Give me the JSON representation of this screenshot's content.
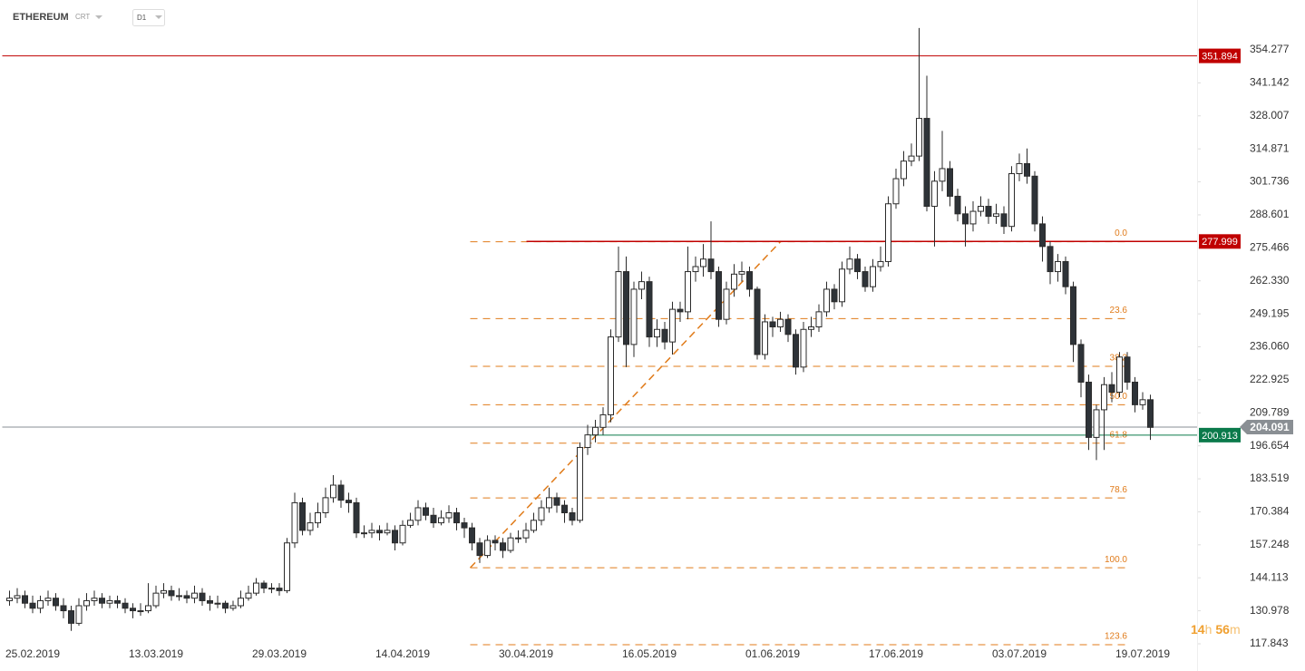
{
  "header": {
    "symbol": "ETHEREUM",
    "account": "CRT",
    "timeframe": "D1"
  },
  "countdown": [
    "14",
    "h",
    "56",
    "m"
  ],
  "chart_data": {
    "type": "candlestick",
    "categories": [
      null,
      null,
      null,
      "25.02.2019",
      null,
      null,
      null,
      null,
      null,
      null,
      null,
      null,
      null,
      null,
      null,
      null,
      null,
      null,
      null,
      "13.03.2019",
      null,
      null,
      null,
      null,
      null,
      null,
      null,
      null,
      null,
      null,
      null,
      null,
      null,
      null,
      null,
      "29.03.2019",
      null,
      null,
      null,
      null,
      null,
      null,
      null,
      null,
      null,
      null,
      null,
      null,
      null,
      null,
      null,
      "14.04.2019",
      null,
      null,
      null,
      null,
      null,
      null,
      null,
      null,
      null,
      null,
      null,
      null,
      null,
      null,
      null,
      "30.04.2019",
      null,
      null,
      null,
      null,
      null,
      null,
      null,
      null,
      null,
      null,
      null,
      null,
      null,
      null,
      null,
      "16.05.2019",
      null,
      null,
      null,
      null,
      null,
      null,
      null,
      null,
      null,
      null,
      null,
      null,
      null,
      null,
      null,
      "01.06.2019",
      null,
      null,
      null,
      null,
      null,
      null,
      null,
      null,
      null,
      null,
      null,
      null,
      null,
      null,
      null,
      "17.06.2019",
      null,
      null,
      null,
      null,
      null,
      null,
      null,
      null,
      null,
      null,
      null,
      null,
      null,
      null,
      null,
      "03.07.2019",
      null,
      null,
      null,
      null,
      null,
      null,
      null,
      null,
      null,
      null,
      null,
      null,
      null,
      null,
      null,
      "19.07.2019",
      null
    ],
    "open": [
      135,
      136,
      137,
      134,
      132,
      135,
      136,
      133,
      131,
      126,
      133,
      135,
      136,
      134,
      135,
      134,
      132,
      131,
      131,
      133,
      138,
      139,
      137,
      137,
      136,
      138,
      135,
      134,
      134,
      132,
      133,
      136,
      138,
      142,
      140,
      140,
      139,
      158,
      174,
      163,
      166,
      170,
      176,
      181,
      175,
      174,
      162,
      162,
      163,
      162,
      163,
      158,
      165,
      167,
      172,
      169,
      166,
      168,
      170,
      166,
      164,
      158,
      153,
      159,
      158,
      155,
      160,
      160,
      163,
      167,
      172,
      176,
      173,
      170,
      167,
      196,
      201,
      204,
      209,
      240,
      266,
      237,
      259,
      262,
      240,
      243,
      238,
      251,
      250,
      266,
      268,
      271,
      266,
      247,
      259,
      265,
      266,
      259,
      233,
      246,
      244,
      247,
      241,
      228,
      243,
      244,
      250,
      259,
      254,
      267,
      271,
      266,
      260,
      268,
      270,
      293,
      303,
      310,
      312,
      327,
      292,
      302,
      307,
      296,
      289,
      285,
      290,
      292,
      288,
      289,
      284,
      305,
      309,
      304,
      285,
      276,
      266,
      270,
      260,
      237,
      222,
      200,
      211,
      221,
      218,
      232,
      222,
      213,
      215
    ],
    "high": [
      139,
      140,
      139,
      137,
      137,
      139,
      138,
      136,
      133,
      136,
      138,
      139,
      138,
      137,
      137,
      136,
      134,
      134,
      142,
      141,
      142,
      141,
      140,
      139,
      141,
      140,
      137,
      137,
      135,
      135,
      139,
      141,
      144,
      143,
      142,
      142,
      160,
      178,
      176,
      170,
      174,
      180,
      185,
      183,
      178,
      176,
      165,
      166,
      165,
      166,
      165,
      167,
      170,
      175,
      174,
      172,
      171,
      173,
      172,
      168,
      166,
      160,
      161,
      161,
      160,
      162,
      163,
      166,
      170,
      175,
      180,
      178,
      175,
      172,
      198,
      205,
      207,
      212,
      243,
      276,
      272,
      262,
      266,
      264,
      247,
      246,
      254,
      254,
      276,
      272,
      277,
      286,
      268,
      262,
      269,
      270,
      268,
      260,
      249,
      248,
      250,
      249,
      243,
      246,
      248,
      253,
      262,
      261,
      270,
      276,
      273,
      268,
      271,
      276,
      296,
      307,
      314,
      317,
      363,
      344,
      306,
      322,
      310,
      299,
      292,
      294,
      296,
      295,
      293,
      292,
      308,
      313,
      315,
      306,
      288,
      278,
      273,
      272,
      262,
      239,
      225,
      213,
      224,
      226,
      234,
      234,
      224,
      218,
      217
    ],
    "low": [
      133,
      134,
      132,
      130,
      130,
      133,
      131,
      128,
      123,
      125,
      131,
      133,
      132,
      132,
      132,
      130,
      128,
      129,
      130,
      132,
      136,
      135,
      135,
      134,
      134,
      133,
      131,
      132,
      130,
      131,
      132,
      135,
      137,
      138,
      138,
      137,
      138,
      156,
      161,
      161,
      164,
      168,
      174,
      172,
      170,
      160,
      160,
      160,
      159,
      161,
      155,
      157,
      164,
      165,
      167,
      164,
      165,
      166,
      163,
      160,
      155,
      150,
      152,
      155,
      152,
      154,
      158,
      158,
      162,
      165,
      170,
      170,
      166,
      165,
      166,
      193,
      198,
      201,
      206,
      238,
      228,
      232,
      255,
      236,
      236,
      235,
      233,
      246,
      247,
      262,
      264,
      263,
      244,
      245,
      256,
      262,
      256,
      231,
      231,
      240,
      242,
      238,
      225,
      226,
      240,
      242,
      248,
      251,
      252,
      265,
      263,
      258,
      258,
      266,
      268,
      291,
      300,
      308,
      310,
      290,
      276,
      298,
      292,
      286,
      276,
      282,
      288,
      285,
      285,
      281,
      282,
      302,
      301,
      282,
      270,
      261,
      262,
      257,
      230,
      216,
      195,
      191,
      195,
      214,
      216,
      219,
      210,
      211,
      199
    ],
    "close": [
      136,
      137,
      134,
      132,
      135,
      136,
      133,
      131,
      126,
      133,
      135,
      136,
      134,
      135,
      134,
      132,
      131,
      131,
      133,
      138,
      139,
      137,
      137,
      136,
      138,
      135,
      134,
      134,
      132,
      133,
      136,
      138,
      142,
      140,
      140,
      139,
      158,
      174,
      163,
      166,
      170,
      176,
      181,
      175,
      174,
      162,
      162,
      163,
      162,
      163,
      158,
      165,
      167,
      172,
      169,
      166,
      168,
      170,
      166,
      164,
      158,
      153,
      159,
      158,
      155,
      160,
      160,
      163,
      167,
      172,
      176,
      173,
      170,
      167,
      196,
      201,
      204,
      209,
      240,
      266,
      237,
      259,
      262,
      240,
      243,
      238,
      251,
      250,
      266,
      268,
      271,
      266,
      247,
      259,
      265,
      266,
      259,
      233,
      246,
      244,
      247,
      241,
      228,
      243,
      244,
      250,
      259,
      254,
      267,
      271,
      266,
      260,
      268,
      270,
      293,
      303,
      310,
      312,
      327,
      292,
      302,
      307,
      296,
      289,
      285,
      290,
      292,
      288,
      289,
      284,
      305,
      309,
      304,
      285,
      276,
      266,
      270,
      260,
      237,
      222,
      200,
      211,
      221,
      218,
      232,
      222,
      213,
      215,
      204
    ],
    "up_color": "#ffffff",
    "down_color": "#2e3338",
    "edge_color": "#2b2b2b",
    "ylim": [
      107.01,
      374.13
    ],
    "yticks": [
      117.843,
      130.978,
      144.113,
      157.248,
      170.384,
      183.519,
      196.654,
      209.789,
      222.925,
      {
        "value": 236.06,
        "label": "236.060"
      },
      249.195,
      {
        "value": 262.33,
        "label": "262.330"
      },
      275.466,
      288.601,
      301.736,
      314.871,
      328.007,
      341.142,
      354.277
    ],
    "levels": [
      {
        "value": 351.894,
        "color": "#c00000",
        "from_index": 0
      },
      {
        "value": 277.999,
        "color": "#c00000",
        "from_index": 68
      },
      {
        "value": 200.913,
        "color": "#0b7a4b",
        "from_index": 76
      },
      {
        "value": 204.091,
        "color": "#8a8f94",
        "from_index": 0
      }
    ],
    "fibonacci": {
      "color": "#e07b1a",
      "from_index": 60,
      "to_index": 145,
      "trend_to_index": 100,
      "levels": [
        {
          "ratio": "0.0",
          "value": 277.9
        },
        {
          "ratio": "23.6",
          "value": 247.3
        },
        {
          "ratio": "38.2",
          "value": 228.3
        },
        {
          "ratio": "50.0",
          "value": 213.0
        },
        {
          "ratio": "61.8",
          "value": 197.7
        },
        {
          "ratio": "78.6",
          "value": 175.9
        },
        {
          "ratio": "100.0",
          "value": 148.1
        },
        {
          "ratio": "123.6",
          "value": 117.5
        }
      ]
    }
  }
}
